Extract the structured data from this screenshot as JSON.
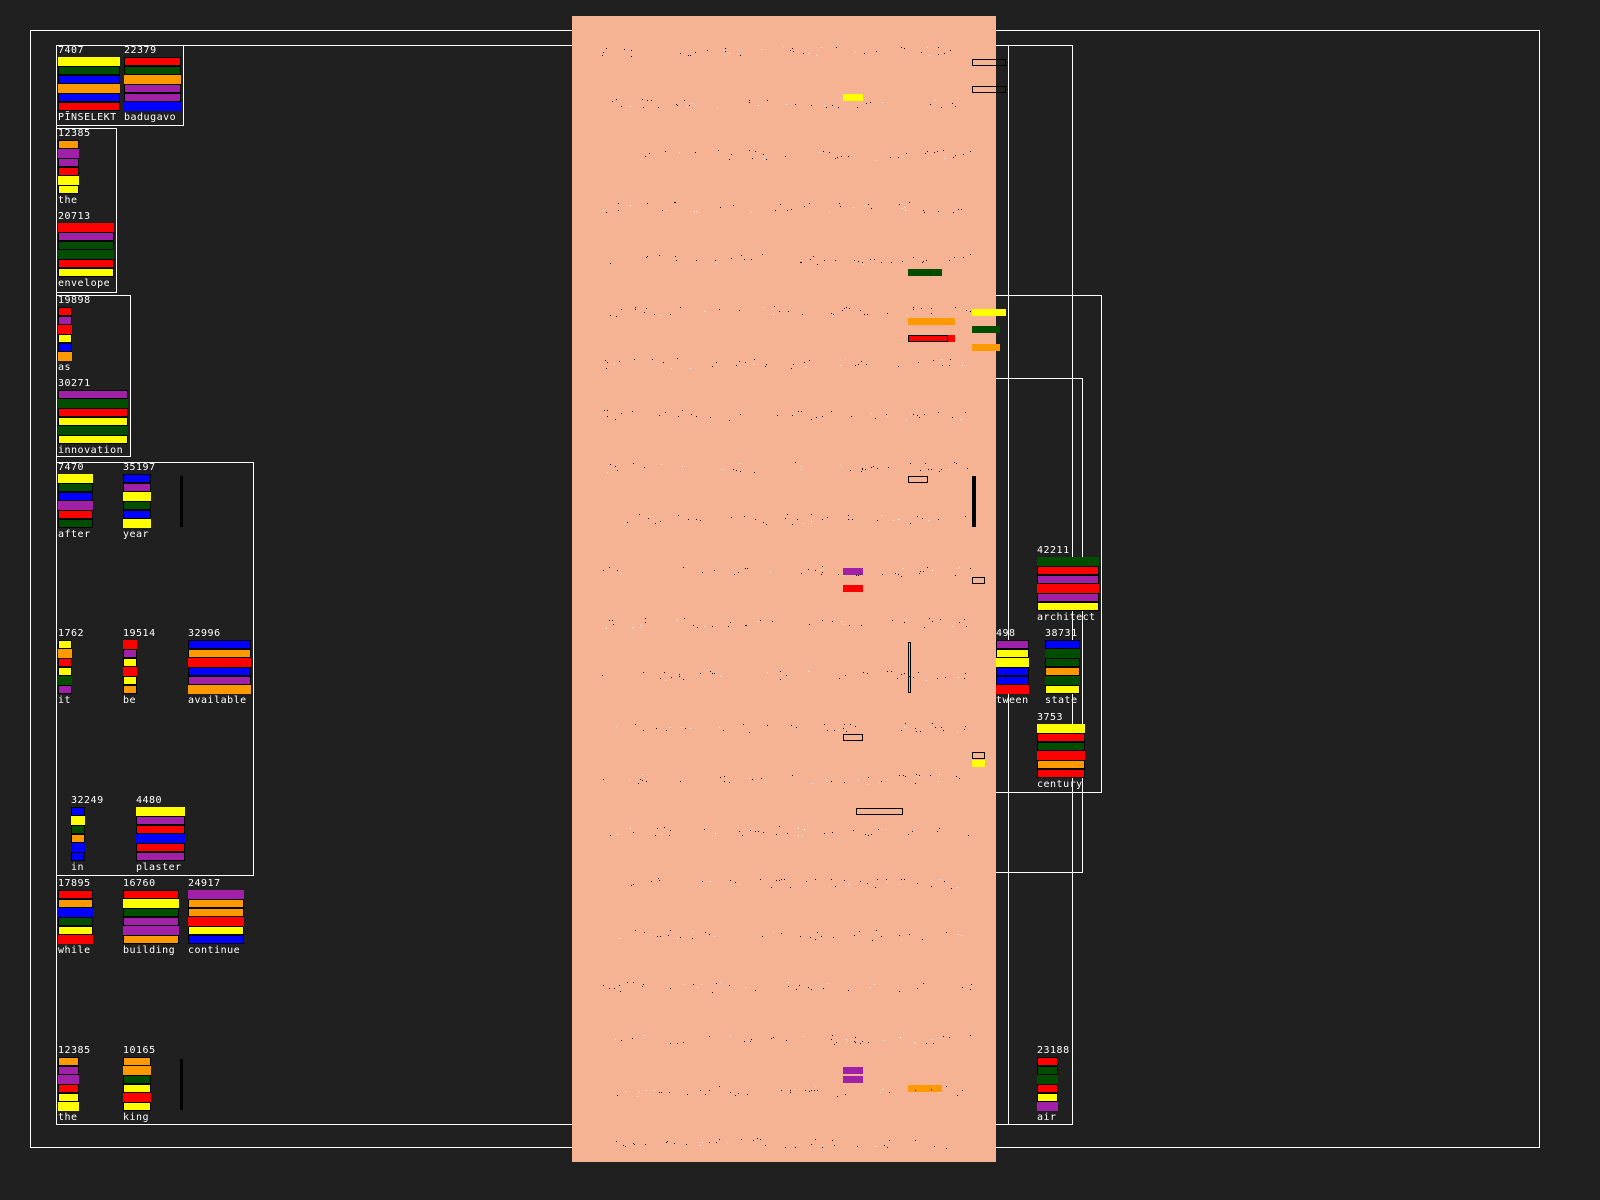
{
  "colors": {
    "background": "#202020",
    "overlay": "#f5b393",
    "yellow": "#ffff00",
    "green": "#004d00",
    "blue": "#0000ff",
    "orange": "#ff9900",
    "red": "#ff0000",
    "purple": "#a020a8"
  },
  "tiles": [
    {
      "count": "7407",
      "label": "PĨNSELEKT",
      "bars": [
        "yellow",
        "green",
        "blue",
        "orange",
        "blue",
        "red"
      ]
    },
    {
      "count": "22379",
      "label": "badugavo",
      "bars": [
        "red",
        "green",
        "orange",
        "purple",
        "purple",
        "blue"
      ]
    },
    {
      "count": "12385",
      "label": "the",
      "bars": [
        "orange",
        "purple",
        "purple",
        "red",
        "yellow",
        "yellow"
      ]
    },
    {
      "count": "20713",
      "label": "envelope",
      "bars": [
        "red",
        "purple",
        "green",
        "green",
        "red",
        "yellow"
      ]
    },
    {
      "count": "19898",
      "label": "as",
      "bars": [
        "red",
        "purple",
        "red",
        "yellow",
        "blue",
        "orange"
      ]
    },
    {
      "count": "30271",
      "label": "innovation",
      "bars": [
        "purple",
        "green",
        "red",
        "yellow",
        "green",
        "yellow"
      ]
    },
    {
      "count": "7470",
      "label": "after",
      "bars": [
        "yellow",
        "green",
        "blue",
        "purple",
        "red",
        "green"
      ]
    },
    {
      "count": "35197",
      "label": "year",
      "bars": [
        "blue",
        "purple",
        "yellow",
        "green",
        "blue",
        "yellow"
      ]
    },
    {
      "count": "1762",
      "label": "it",
      "bars": [
        "yellow",
        "orange",
        "red",
        "yellow",
        "green",
        "purple"
      ]
    },
    {
      "count": "19514",
      "label": "be",
      "bars": [
        "red",
        "purple",
        "yellow",
        "red",
        "yellow",
        "orange"
      ]
    },
    {
      "count": "32996",
      "label": "available",
      "bars": [
        "blue",
        "orange",
        "red",
        "blue",
        "purple",
        "orange"
      ]
    },
    {
      "count": "32249",
      "label": "in",
      "bars": [
        "blue",
        "yellow",
        "green",
        "orange",
        "blue",
        "blue"
      ]
    },
    {
      "count": "4480",
      "label": "plaster",
      "bars": [
        "yellow",
        "purple",
        "red",
        "blue",
        "red",
        "purple"
      ]
    },
    {
      "count": "17895",
      "label": "while",
      "bars": [
        "red",
        "orange",
        "blue",
        "green",
        "yellow",
        "red"
      ]
    },
    {
      "count": "16760",
      "label": "building",
      "bars": [
        "red",
        "yellow",
        "green",
        "purple",
        "purple",
        "orange"
      ]
    },
    {
      "count": "24917",
      "label": "continue",
      "bars": [
        "purple",
        "orange",
        "orange",
        "red",
        "yellow",
        "blue"
      ]
    },
    {
      "count": "12385",
      "label": "the",
      "bars": [
        "orange",
        "purple",
        "purple",
        "red",
        "yellow",
        "yellow"
      ]
    },
    {
      "count": "10165",
      "label": "king",
      "bars": [
        "orange",
        "orange",
        "green",
        "yellow",
        "red",
        "yellow"
      ]
    },
    {
      "count": "42211",
      "label": "architect",
      "bars": [
        "green",
        "red",
        "purple",
        "red",
        "purple",
        "yellow"
      ]
    },
    {
      "count": "498",
      "label": "tween",
      "bars": [
        "purple",
        "yellow",
        "yellow",
        "blue",
        "blue",
        "red"
      ]
    },
    {
      "count": "38731",
      "label": "state",
      "bars": [
        "blue",
        "green",
        "green",
        "orange",
        "green",
        "yellow"
      ]
    },
    {
      "count": "3753",
      "label": "century",
      "bars": [
        "yellow",
        "red",
        "green",
        "red",
        "orange",
        "red"
      ]
    },
    {
      "count": "23188",
      "label": "air",
      "bars": [
        "red",
        "green",
        "green",
        "red",
        "yellow",
        "purple"
      ]
    }
  ],
  "overlay_marks": [
    {
      "color": "yellow"
    },
    {
      "color": "green"
    },
    {
      "color": "orange"
    },
    {
      "color": "red"
    },
    {
      "color": "yellow"
    },
    {
      "color": "green"
    },
    {
      "color": "orange"
    },
    {
      "color": "purple"
    },
    {
      "color": "red"
    },
    {
      "color": "yellow"
    },
    {
      "color": "purple"
    },
    {
      "color": "purple"
    },
    {
      "color": "orange"
    }
  ]
}
